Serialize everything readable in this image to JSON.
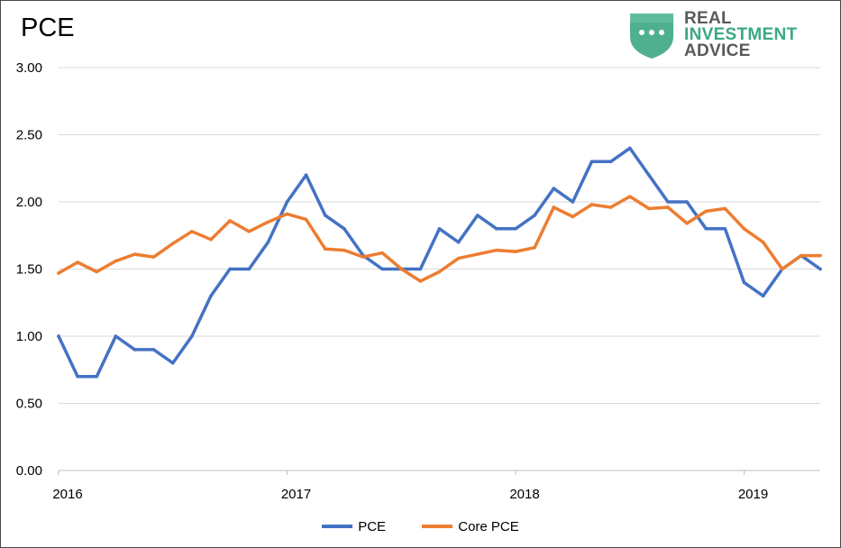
{
  "brand": {
    "line1": "REAL",
    "line2": "INVESTMENT",
    "line3": "ADVICE",
    "shield_color": "#4fb08f",
    "accent_color": "#3aa883"
  },
  "chart_data": {
    "type": "line",
    "title": "PCE",
    "xlabel": "",
    "ylabel": "",
    "x_start": "2016-01",
    "x_end": "2019-05",
    "x_ticks": [
      "2016",
      "2017",
      "2018",
      "2019"
    ],
    "y_ticks": [
      "0.00",
      "0.50",
      "1.00",
      "1.50",
      "2.00",
      "2.50",
      "3.00"
    ],
    "ylim": [
      0,
      3
    ],
    "grid": true,
    "legend_position": "bottom",
    "x": [
      "2016-01",
      "2016-02",
      "2016-03",
      "2016-04",
      "2016-05",
      "2016-06",
      "2016-07",
      "2016-08",
      "2016-09",
      "2016-10",
      "2016-11",
      "2016-12",
      "2017-01",
      "2017-02",
      "2017-03",
      "2017-04",
      "2017-05",
      "2017-06",
      "2017-07",
      "2017-08",
      "2017-09",
      "2017-10",
      "2017-11",
      "2017-12",
      "2018-01",
      "2018-02",
      "2018-03",
      "2018-04",
      "2018-05",
      "2018-06",
      "2018-07",
      "2018-08",
      "2018-09",
      "2018-10",
      "2018-11",
      "2018-12",
      "2019-01",
      "2019-02",
      "2019-03",
      "2019-04",
      "2019-05"
    ],
    "series": [
      {
        "name": "PCE",
        "color": "#4472c4",
        "values": [
          1.0,
          0.7,
          0.7,
          1.0,
          0.9,
          0.9,
          0.8,
          1.0,
          1.3,
          1.5,
          1.5,
          1.7,
          2.0,
          2.2,
          1.9,
          1.8,
          1.6,
          1.5,
          1.5,
          1.5,
          1.8,
          1.7,
          1.9,
          1.8,
          1.8,
          1.9,
          2.1,
          2.0,
          2.3,
          2.3,
          2.4,
          2.2,
          2.0,
          2.0,
          1.8,
          1.8,
          1.4,
          1.3,
          1.5,
          1.6,
          1.5
        ]
      },
      {
        "name": "Core PCE",
        "color": "#ed7d31",
        "values": [
          1.47,
          1.55,
          1.48,
          1.56,
          1.61,
          1.59,
          1.69,
          1.78,
          1.72,
          1.86,
          1.78,
          1.85,
          1.91,
          1.87,
          1.65,
          1.64,
          1.59,
          1.62,
          1.5,
          1.41,
          1.48,
          1.58,
          1.61,
          1.64,
          1.63,
          1.66,
          1.96,
          1.89,
          1.98,
          1.96,
          2.04,
          1.95,
          1.96,
          1.84,
          1.93,
          1.95,
          1.8,
          1.7,
          1.5,
          1.6,
          1.6
        ]
      }
    ]
  }
}
